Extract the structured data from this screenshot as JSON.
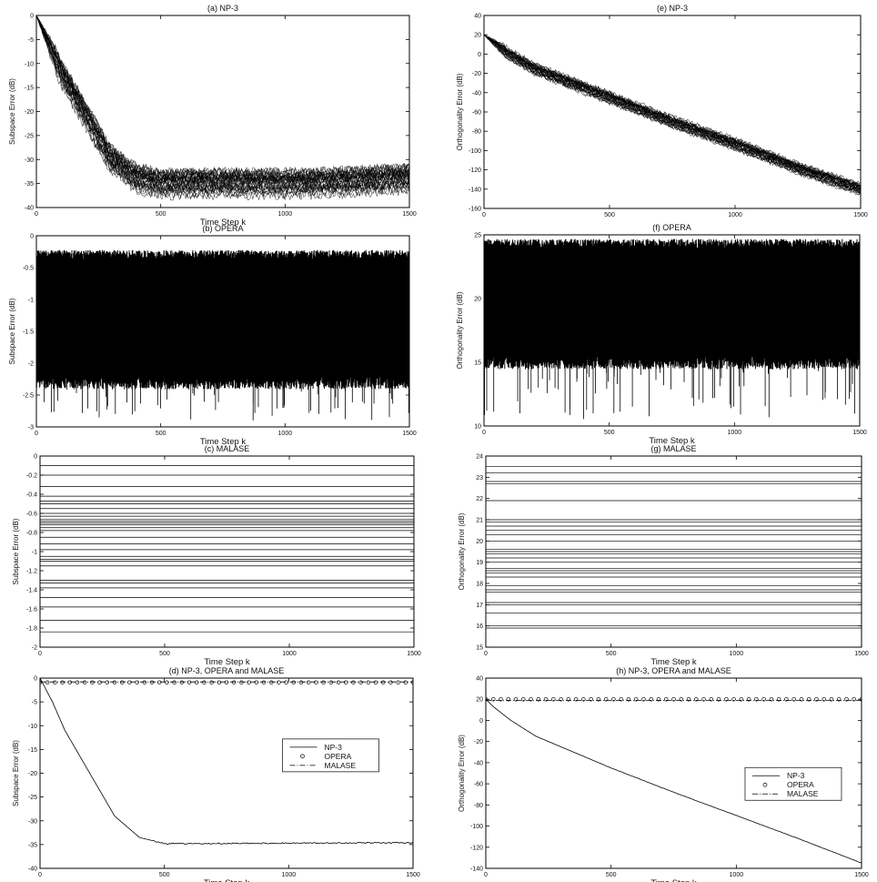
{
  "chart_data": [
    {
      "id": "a",
      "type": "line",
      "title": "(a)  NP-3",
      "xlabel": "Time Step k",
      "ylabel": "Subspace Error (dB)",
      "xlim": [
        0,
        1500
      ],
      "ylim": [
        -40,
        0
      ],
      "xticks": [
        "0",
        "500",
        "1000",
        "1500"
      ],
      "yticks": [
        "0",
        "-5",
        "-10",
        "-15",
        "-20",
        "-25",
        "-30",
        "-35",
        "-40"
      ],
      "grid": false,
      "render": "ensemble",
      "series": [
        {
          "values": [
            [
              0,
              0
            ],
            [
              50,
              -6
            ],
            [
              100,
              -12
            ],
            [
              200,
              -21
            ],
            [
              300,
              -30
            ],
            [
              400,
              -34
            ],
            [
              500,
              -35
            ],
            [
              800,
              -35
            ],
            [
              1100,
              -35
            ],
            [
              1500,
              -34
            ]
          ]
        }
      ],
      "spread": 2.5
    },
    {
      "id": "e",
      "type": "line",
      "title": "(e)  NP-3",
      "xlabel": "",
      "ylabel": "Orthogonality Error (dB)",
      "xlim": [
        0,
        1500
      ],
      "ylim": [
        -160,
        40
      ],
      "xticks": [
        "0",
        "500",
        "1000",
        "1500"
      ],
      "yticks": [
        "40",
        "20",
        "0",
        "-20",
        "-40",
        "-60",
        "-80",
        "-100",
        "-120",
        "-140",
        "-160"
      ],
      "grid": false,
      "render": "ensemble",
      "series": [
        {
          "values": [
            [
              0,
              20
            ],
            [
              30,
              14
            ],
            [
              100,
              0
            ],
            [
              200,
              -15
            ],
            [
              300,
              -25
            ],
            [
              500,
              -45
            ],
            [
              750,
              -70
            ],
            [
              1000,
              -93
            ],
            [
              1250,
              -118
            ],
            [
              1500,
              -140
            ]
          ]
        }
      ],
      "spread": 6
    },
    {
      "id": "b",
      "type": "line",
      "title": "(b)  OPERA",
      "xlabel": "Time Step k",
      "ylabel": "Subspace Error (dB)",
      "xlim": [
        0,
        1500
      ],
      "ylim": [
        -3,
        0
      ],
      "xticks": [
        "0",
        "500",
        "1000",
        "1500"
      ],
      "yticks": [
        "0",
        "-0.5",
        "-1",
        "-1.5",
        "-2",
        "-2.5",
        "-3"
      ],
      "grid": false,
      "render": "dense",
      "band_top": -0.3,
      "band_bottom": -2.2,
      "spike_min": -2.9
    },
    {
      "id": "f",
      "type": "line",
      "title": "(f)  OPERA",
      "xlabel": "Time Step k",
      "ylabel": "Orthogonality Error (dB)",
      "xlim": [
        0,
        1500
      ],
      "ylim": [
        10,
        25
      ],
      "xticks": [
        "0",
        "500",
        "1000",
        "1500"
      ],
      "yticks": [
        "25",
        "20",
        "15",
        "10"
      ],
      "grid": false,
      "render": "dense",
      "band_top": 24.3,
      "band_bottom": 15.5,
      "spike_min": 10.5
    },
    {
      "id": "c",
      "type": "line",
      "title": "(c)  MALASE",
      "xlabel": "Time Step k",
      "ylabel": "Subspace Error (dB)",
      "xlim": [
        0,
        1500
      ],
      "ylim": [
        -2,
        0
      ],
      "xticks": [
        "0",
        "500",
        "1000",
        "1500"
      ],
      "yticks": [
        "0",
        "-0.2",
        "-0.4",
        "-0.6",
        "-0.8",
        "-1",
        "-1.2",
        "-1.4",
        "-1.6",
        "-1.8",
        "-2"
      ],
      "grid": false,
      "render": "hlines",
      "levels": [
        -0.1,
        -0.2,
        -0.32,
        -0.42,
        -0.47,
        -0.5,
        -0.55,
        -0.6,
        -0.63,
        -0.66,
        -0.68,
        -0.7,
        -0.72,
        -0.75,
        -0.78,
        -0.85,
        -0.92,
        -0.98,
        -1.05,
        -1.08,
        -1.1,
        -1.15,
        -1.3,
        -1.33,
        -1.38,
        -1.48,
        -1.58,
        -1.72,
        -1.84
      ]
    },
    {
      "id": "g",
      "type": "line",
      "title": "(g)  MALASE",
      "xlabel": "Time Step k",
      "ylabel": "Orthogonality Error (dB)",
      "xlim": [
        0,
        1500
      ],
      "ylim": [
        15,
        24
      ],
      "xticks": [
        "0",
        "500",
        "1000",
        "1500"
      ],
      "yticks": [
        "24",
        "23",
        "22",
        "21",
        "20",
        "19",
        "18",
        "17",
        "16",
        "15"
      ],
      "grid": false,
      "render": "hlines",
      "levels": [
        23.5,
        23.2,
        22.8,
        22.7,
        21.9,
        21.0,
        20.9,
        20.7,
        20.5,
        20.3,
        20.0,
        19.6,
        19.5,
        19.4,
        19.2,
        19.0,
        18.7,
        18.6,
        18.5,
        18.3,
        17.9,
        17.7,
        17.6,
        17.1,
        17.0,
        16.6,
        16.0,
        15.9
      ]
    },
    {
      "id": "d",
      "type": "line",
      "title": "(d)  NP-3, OPERA and MALASE",
      "xlabel": "Time Step k",
      "ylabel": "Subspace Error (dB)",
      "xlim": [
        0,
        1500
      ],
      "ylim": [
        -40,
        0
      ],
      "xticks": [
        "0",
        "500",
        "1000",
        "1500"
      ],
      "yticks": [
        "0",
        "-5",
        "-10",
        "-15",
        "-20",
        "-25",
        "-30",
        "-35",
        "-40"
      ],
      "grid": false,
      "legend": "top-right",
      "render": "combined",
      "series": [
        {
          "name": "NP-3",
          "style": "solid",
          "values": [
            [
              0,
              0
            ],
            [
              50,
              -5
            ],
            [
              100,
              -11
            ],
            [
              200,
              -20
            ],
            [
              300,
              -29
            ],
            [
              400,
              -33.5
            ],
            [
              500,
              -34.8
            ],
            [
              700,
              -34.8
            ],
            [
              1000,
              -34.7
            ],
            [
              1500,
              -34.6
            ]
          ]
        },
        {
          "name": "OPERA",
          "style": "markers",
          "values": [
            [
              0,
              -0.9
            ],
            [
              1500,
              -0.9
            ]
          ]
        },
        {
          "name": "MALASE",
          "style": "dashdot",
          "values": [
            [
              0,
              -0.8
            ],
            [
              1500,
              -0.8
            ]
          ]
        }
      ]
    },
    {
      "id": "h",
      "type": "line",
      "title": "(h)  NP-3, OPERA and MALASE",
      "xlabel": "Time Step k",
      "ylabel": "Orthogonality Error (dB)",
      "xlim": [
        0,
        1500
      ],
      "ylim": [
        -140,
        40
      ],
      "xticks": [
        "0",
        "500",
        "1000",
        "1500"
      ],
      "yticks": [
        "40",
        "20",
        "0",
        "-20",
        "-40",
        "-60",
        "-80",
        "-100",
        "-120",
        "-140"
      ],
      "grid": false,
      "legend": "center-right",
      "render": "combined",
      "series": [
        {
          "name": "NP-3",
          "style": "solid",
          "values": [
            [
              0,
              20
            ],
            [
              30,
              13
            ],
            [
              100,
              0
            ],
            [
              200,
              -15
            ],
            [
              300,
              -25
            ],
            [
              500,
              -45
            ],
            [
              750,
              -68
            ],
            [
              1000,
              -90
            ],
            [
              1250,
              -112
            ],
            [
              1500,
              -135
            ]
          ]
        },
        {
          "name": "OPERA",
          "style": "markers",
          "values": [
            [
              0,
              20
            ],
            [
              1500,
              20
            ]
          ]
        },
        {
          "name": "MALASE",
          "style": "dashdot",
          "values": [
            [
              0,
              19
            ],
            [
              1500,
              19
            ]
          ]
        }
      ]
    }
  ]
}
